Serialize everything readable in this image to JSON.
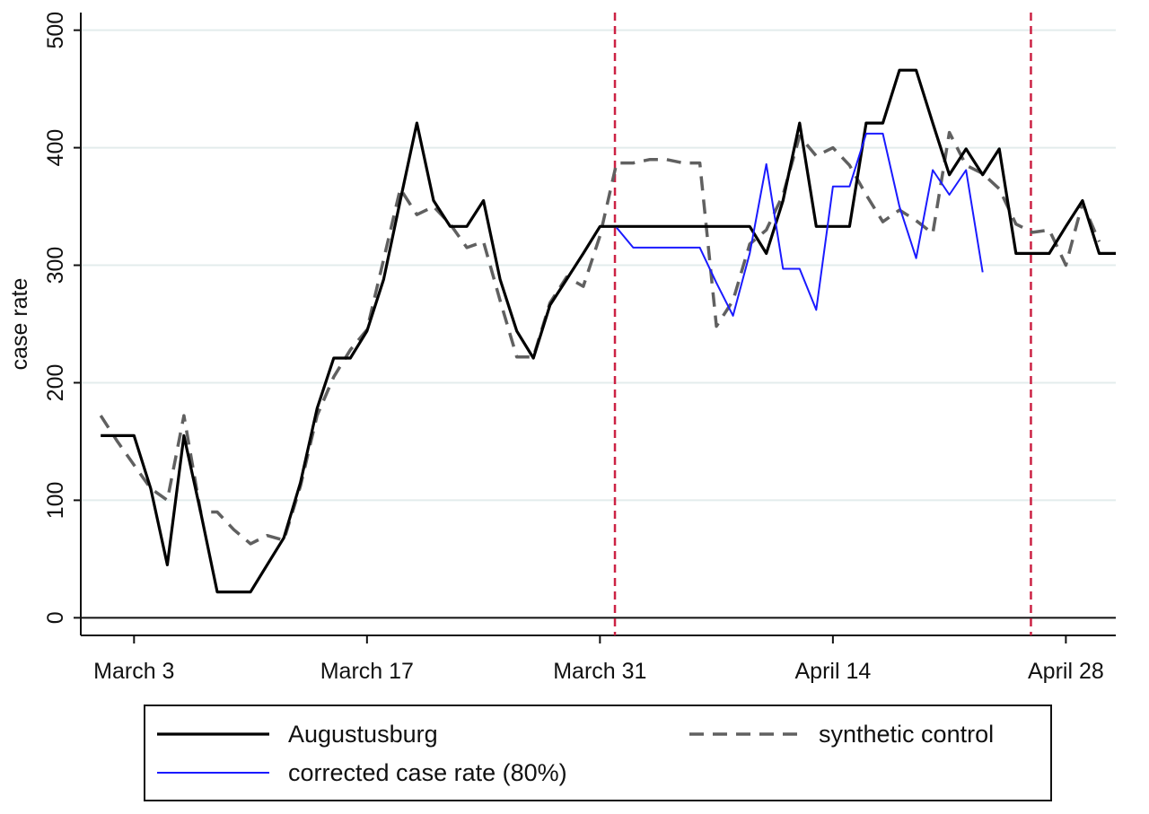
{
  "chart_data": {
    "type": "line",
    "ylabel": "case rate",
    "ylim": [
      -15,
      515
    ],
    "yticks": [
      0,
      100,
      200,
      300,
      400,
      500
    ],
    "xlim": [
      -3.2,
      59
    ],
    "xticks": [
      {
        "label": "March 3",
        "x": 0
      },
      {
        "label": "March 17",
        "x": 14
      },
      {
        "label": "March 31",
        "x": 28
      },
      {
        "label": "April 14",
        "x": 42
      },
      {
        "label": "April 28",
        "x": 56
      }
    ],
    "grid": true,
    "vlines": [
      28.9,
      53.9
    ],
    "vline_color": "#cc2244",
    "legend_position": "bottom",
    "series": [
      {
        "name": "Augustusburg",
        "color": "#000000",
        "style": "solid",
        "points": [
          [
            -2,
            155
          ],
          [
            0,
            155
          ],
          [
            1,
            110
          ],
          [
            2,
            45
          ],
          [
            3,
            155
          ],
          [
            4,
            90
          ],
          [
            5,
            22
          ],
          [
            6,
            22
          ],
          [
            7,
            22
          ],
          [
            8,
            45
          ],
          [
            9,
            68
          ],
          [
            10,
            115
          ],
          [
            11,
            178
          ],
          [
            12,
            221
          ],
          [
            13,
            221
          ],
          [
            14,
            244
          ],
          [
            15,
            288
          ],
          [
            16,
            355
          ],
          [
            17,
            421
          ],
          [
            18,
            355
          ],
          [
            19,
            333
          ],
          [
            20,
            333
          ],
          [
            21,
            355
          ],
          [
            22,
            288
          ],
          [
            23,
            244
          ],
          [
            24,
            221
          ],
          [
            25,
            266
          ],
          [
            26,
            288
          ],
          [
            27,
            310
          ],
          [
            28,
            333
          ],
          [
            29,
            333
          ],
          [
            30,
            333
          ],
          [
            31,
            333
          ],
          [
            32,
            333
          ],
          [
            33,
            333
          ],
          [
            34,
            333
          ],
          [
            35,
            333
          ],
          [
            36,
            333
          ],
          [
            37,
            333
          ],
          [
            38,
            310
          ],
          [
            39,
            355
          ],
          [
            40,
            421
          ],
          [
            41,
            333
          ],
          [
            42,
            333
          ],
          [
            43,
            333
          ],
          [
            44,
            421
          ],
          [
            45,
            421
          ],
          [
            46,
            466
          ],
          [
            47,
            466
          ],
          [
            48,
            421
          ],
          [
            49,
            377
          ],
          [
            50,
            399
          ],
          [
            51,
            377
          ],
          [
            52,
            399
          ],
          [
            53,
            310
          ],
          [
            54,
            310
          ],
          [
            55,
            310
          ],
          [
            56,
            333
          ],
          [
            57,
            355
          ],
          [
            58,
            310
          ],
          [
            59,
            310
          ]
        ]
      },
      {
        "name": "synthetic control",
        "color": "#606060",
        "style": "dashed",
        "points": [
          [
            -2,
            172
          ],
          [
            -1,
            150
          ],
          [
            0,
            130
          ],
          [
            1,
            110
          ],
          [
            2,
            100
          ],
          [
            3,
            172
          ],
          [
            4,
            90
          ],
          [
            5,
            90
          ],
          [
            6,
            75
          ],
          [
            7,
            63
          ],
          [
            8,
            70
          ],
          [
            9,
            66
          ],
          [
            10,
            112
          ],
          [
            11,
            172
          ],
          [
            12,
            205
          ],
          [
            13,
            228
          ],
          [
            14,
            245
          ],
          [
            15,
            305
          ],
          [
            16,
            365
          ],
          [
            17,
            343
          ],
          [
            18,
            350
          ],
          [
            19,
            335
          ],
          [
            20,
            315
          ],
          [
            21,
            320
          ],
          [
            22,
            270
          ],
          [
            23,
            222
          ],
          [
            24,
            222
          ],
          [
            25,
            268
          ],
          [
            26,
            290
          ],
          [
            27,
            282
          ],
          [
            28,
            325
          ],
          [
            29,
            387
          ],
          [
            30,
            387
          ],
          [
            31,
            390
          ],
          [
            32,
            390
          ],
          [
            33,
            387
          ],
          [
            34,
            387
          ],
          [
            35,
            248
          ],
          [
            36,
            270
          ],
          [
            37,
            318
          ],
          [
            38,
            330
          ],
          [
            39,
            360
          ],
          [
            40,
            410
          ],
          [
            41,
            393
          ],
          [
            42,
            400
          ],
          [
            43,
            385
          ],
          [
            44,
            360
          ],
          [
            45,
            337
          ],
          [
            46,
            347
          ],
          [
            47,
            338
          ],
          [
            48,
            327
          ],
          [
            49,
            413
          ],
          [
            50,
            385
          ],
          [
            51,
            378
          ],
          [
            52,
            365
          ],
          [
            53,
            335
          ],
          [
            54,
            328
          ],
          [
            55,
            330
          ],
          [
            56,
            300
          ],
          [
            57,
            353
          ],
          [
            58,
            320
          ]
        ]
      },
      {
        "name": "corrected case rate (80%)",
        "color": "#1a1aff",
        "style": "solid",
        "points": [
          [
            29,
            332
          ],
          [
            30,
            315
          ],
          [
            31,
            315
          ],
          [
            32,
            315
          ],
          [
            33,
            315
          ],
          [
            34,
            315
          ],
          [
            35,
            285
          ],
          [
            36,
            257
          ],
          [
            37,
            310
          ],
          [
            38,
            386
          ],
          [
            39,
            297
          ],
          [
            40,
            297
          ],
          [
            41,
            262
          ],
          [
            42,
            367
          ],
          [
            43,
            367
          ],
          [
            44,
            412
          ],
          [
            45,
            412
          ],
          [
            46,
            350
          ],
          [
            47,
            306
          ],
          [
            48,
            381
          ],
          [
            49,
            360
          ],
          [
            50,
            381
          ],
          [
            51,
            294
          ]
        ]
      }
    ]
  }
}
